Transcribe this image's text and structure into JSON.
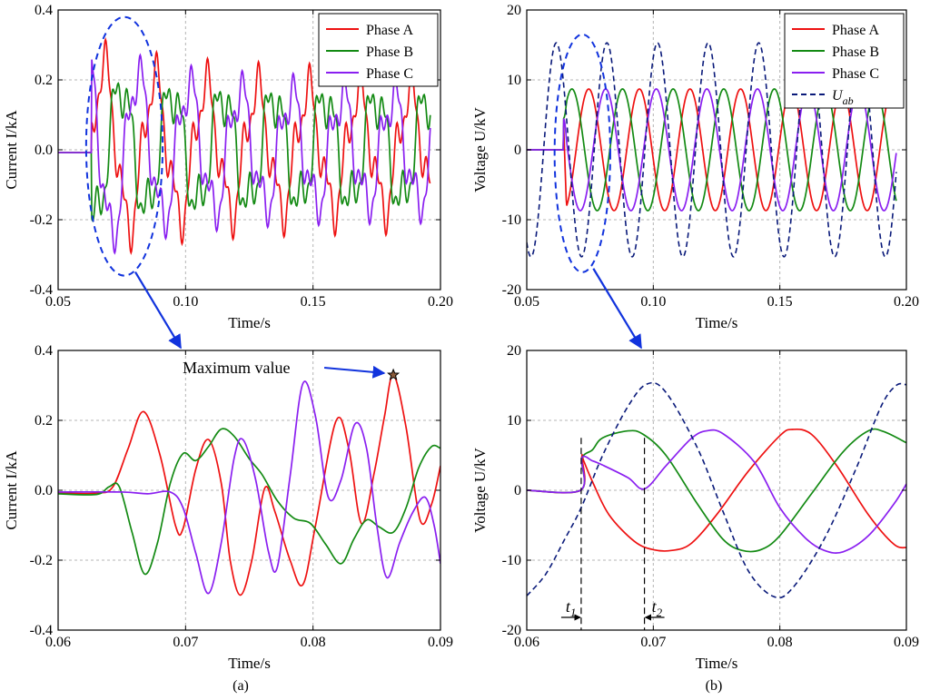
{
  "figure": {
    "sub_a": "(a)",
    "sub_b": "(b)"
  },
  "colors": {
    "A": "#ee1111",
    "B": "#138a13",
    "C": "#8a1ff0",
    "Uab": "#0a1a7a",
    "highlight": "#1133dd",
    "grid": "#b4b4b4"
  },
  "chart_data": [
    {
      "id": "current-overview",
      "type": "line",
      "xlabel": "Time/s",
      "ylabel": "Current I/kA",
      "xlim": [
        0.05,
        0.2
      ],
      "ylim": [
        -0.4,
        0.4
      ],
      "xticks": [
        0.05,
        0.1,
        0.15,
        0.2
      ],
      "xtick_labels": [
        "0.05",
        "0.10",
        "0.15",
        "0.20"
      ],
      "yticks": [
        -0.4,
        -0.2,
        0.0,
        0.2,
        0.4
      ],
      "ytick_labels": [
        "-0.4",
        "-0.2",
        "0.0",
        "0.2",
        "0.4"
      ],
      "grid": true,
      "legend_position": "top-right",
      "legend": [
        "Phase A",
        "Phase B",
        "Phase C"
      ],
      "annotation": {
        "type": "ellipse-highlight",
        "x_range": [
          0.061,
          0.091
        ],
        "y_range": [
          -0.36,
          0.38
        ]
      },
      "series": [
        {
          "name": "Phase A",
          "key": "A",
          "onset": 0.063,
          "amp": 0.16,
          "amp_early": 0.25,
          "period": 0.02,
          "phase_deg": 0,
          "ripple": 0.06
        },
        {
          "name": "Phase B",
          "key": "B",
          "onset": 0.063,
          "amp": 0.15,
          "amp_early": 0.2,
          "period": 0.02,
          "phase_deg": -120,
          "ripple": 0.06
        },
        {
          "name": "Phase C",
          "key": "C",
          "onset": 0.063,
          "amp": 0.15,
          "amp_early": 0.27,
          "period": 0.02,
          "phase_deg": 120,
          "ripple": 0.06
        }
      ]
    },
    {
      "id": "voltage-overview",
      "type": "line",
      "xlabel": "Time/s",
      "ylabel": "Voltage U/kV",
      "xlim": [
        0.05,
        0.2
      ],
      "ylim": [
        -20,
        20
      ],
      "xticks": [
        0.05,
        0.1,
        0.15,
        0.2
      ],
      "xtick_labels": [
        "0.05",
        "0.10",
        "0.15",
        "0.20"
      ],
      "yticks": [
        -20,
        -10,
        0,
        10,
        20
      ],
      "ytick_labels": [
        "-20",
        "-10",
        "0",
        "10",
        "20"
      ],
      "grid": true,
      "legend_position": "top-right",
      "legend": [
        "Phase A",
        "Phase B",
        "Phase C",
        "U"
      ],
      "legend_sub": "ab",
      "annotation": {
        "type": "ellipse-highlight",
        "x_range": [
          0.061,
          0.083
        ],
        "y_range": [
          -17.5,
          16.5
        ]
      },
      "series": [
        {
          "name": "Phase A",
          "key": "A",
          "onset": 0.0645,
          "amp": 8.7,
          "period": 0.02,
          "phase_deg": -90
        },
        {
          "name": "Phase B",
          "key": "B",
          "onset": 0.0645,
          "amp": 8.7,
          "period": 0.02,
          "phase_deg": 30
        },
        {
          "name": "Phase C",
          "key": "C",
          "onset": 0.0645,
          "amp": 8.7,
          "period": 0.02,
          "phase_deg": 150
        },
        {
          "name": "Uab",
          "key": "Uab",
          "onset": 0.05,
          "amp": 15.3,
          "period": 0.02,
          "phase_deg": -120,
          "dashed": true
        }
      ]
    },
    {
      "id": "current-zoom",
      "type": "line",
      "xlabel": "Time/s",
      "ylabel": "Current I/kA",
      "xlim": [
        0.06,
        0.09
      ],
      "ylim": [
        -0.4,
        0.4
      ],
      "xticks": [
        0.06,
        0.07,
        0.08,
        0.09
      ],
      "xtick_labels": [
        "0.06",
        "0.07",
        "0.08",
        "0.09"
      ],
      "yticks": [
        -0.4,
        -0.2,
        0.0,
        0.2,
        0.4
      ],
      "ytick_labels": [
        "-0.4",
        "-0.2",
        "0.0",
        "0.2",
        "0.4"
      ],
      "grid": true,
      "annotation": {
        "text": "Maximum value",
        "x": 0.0863,
        "y": 0.33,
        "marker": "star"
      },
      "series": [
        {
          "name": "Phase A",
          "key": "A",
          "points": [
            [
              0.06,
              -0.008
            ],
            [
              0.063,
              -0.008
            ],
            [
              0.0643,
              0.01
            ],
            [
              0.0655,
              0.12
            ],
            [
              0.0667,
              0.225
            ],
            [
              0.068,
              0.1
            ],
            [
              0.0692,
              -0.1
            ],
            [
              0.0698,
              -0.11
            ],
            [
              0.0708,
              0.06
            ],
            [
              0.0718,
              0.145
            ],
            [
              0.0728,
              0.02
            ],
            [
              0.0735,
              -0.2
            ],
            [
              0.0743,
              -0.3
            ],
            [
              0.0752,
              -0.2
            ],
            [
              0.0762,
              0.005
            ],
            [
              0.077,
              -0.06
            ],
            [
              0.0782,
              -0.2
            ],
            [
              0.0792,
              -0.27
            ],
            [
              0.0802,
              -0.1
            ],
            [
              0.0818,
              0.198
            ],
            [
              0.0828,
              0.12
            ],
            [
              0.0838,
              -0.095
            ],
            [
              0.0848,
              0.05
            ],
            [
              0.0856,
              0.21
            ],
            [
              0.0863,
              0.33
            ],
            [
              0.0873,
              0.18
            ],
            [
              0.0884,
              -0.085
            ],
            [
              0.0893,
              -0.04
            ],
            [
              0.09,
              0.07
            ]
          ]
        },
        {
          "name": "Phase B",
          "key": "B",
          "points": [
            [
              0.06,
              -0.01
            ],
            [
              0.063,
              -0.012
            ],
            [
              0.064,
              0.01
            ],
            [
              0.0648,
              0.01
            ],
            [
              0.0658,
              -0.12
            ],
            [
              0.0668,
              -0.24
            ],
            [
              0.0678,
              -0.15
            ],
            [
              0.0688,
              0.02
            ],
            [
              0.0698,
              0.105
            ],
            [
              0.0708,
              0.085
            ],
            [
              0.0718,
              0.125
            ],
            [
              0.0728,
              0.175
            ],
            [
              0.0738,
              0.155
            ],
            [
              0.075,
              0.09
            ],
            [
              0.076,
              0.045
            ],
            [
              0.0772,
              -0.03
            ],
            [
              0.0785,
              -0.08
            ],
            [
              0.0798,
              -0.095
            ],
            [
              0.081,
              -0.155
            ],
            [
              0.0822,
              -0.21
            ],
            [
              0.0832,
              -0.14
            ],
            [
              0.0842,
              -0.085
            ],
            [
              0.0852,
              -0.105
            ],
            [
              0.0863,
              -0.12
            ],
            [
              0.0873,
              -0.05
            ],
            [
              0.0883,
              0.065
            ],
            [
              0.0893,
              0.125
            ],
            [
              0.09,
              0.12
            ]
          ]
        },
        {
          "name": "Phase C",
          "key": "C",
          "points": [
            [
              0.06,
              -0.005
            ],
            [
              0.065,
              -0.005
            ],
            [
              0.067,
              -0.01
            ],
            [
              0.0688,
              -0.005
            ],
            [
              0.0698,
              -0.05
            ],
            [
              0.0708,
              -0.18
            ],
            [
              0.0718,
              -0.295
            ],
            [
              0.0728,
              -0.15
            ],
            [
              0.0738,
              0.09
            ],
            [
              0.0745,
              0.145
            ],
            [
              0.0755,
              0.03
            ],
            [
              0.0765,
              -0.175
            ],
            [
              0.0772,
              -0.22
            ],
            [
              0.0782,
              0.04
            ],
            [
              0.0792,
              0.305
            ],
            [
              0.0802,
              0.21
            ],
            [
              0.0812,
              -0.02
            ],
            [
              0.0822,
              0.03
            ],
            [
              0.0833,
              0.19
            ],
            [
              0.0842,
              0.12
            ],
            [
              0.085,
              -0.1
            ],
            [
              0.0858,
              -0.25
            ],
            [
              0.0868,
              -0.15
            ],
            [
              0.0878,
              -0.065
            ],
            [
              0.0888,
              -0.02
            ],
            [
              0.0895,
              -0.1
            ],
            [
              0.09,
              -0.21
            ]
          ]
        }
      ]
    },
    {
      "id": "voltage-zoom",
      "type": "line",
      "xlabel": "Time/s",
      "ylabel": "Voltage U/kV",
      "xlim": [
        0.06,
        0.09
      ],
      "ylim": [
        -20,
        20
      ],
      "xticks": [
        0.06,
        0.07,
        0.08,
        0.09
      ],
      "xtick_labels": [
        "0.06",
        "0.07",
        "0.08",
        "0.09"
      ],
      "yticks": [
        -20,
        -10,
        0,
        10,
        20
      ],
      "ytick_labels": [
        "-20",
        "-10",
        "0",
        "10",
        "20"
      ],
      "grid": true,
      "markers": [
        {
          "label": "t",
          "sub": "1",
          "x": 0.0643
        },
        {
          "label": "t",
          "sub": "2",
          "x": 0.0693
        }
      ],
      "series": [
        {
          "name": "Phase A",
          "key": "A",
          "points": [
            [
              0.06,
              0
            ],
            [
              0.06425,
              0
            ],
            [
              0.06435,
              4.8
            ],
            [
              0.0645,
              4.2
            ],
            [
              0.0652,
              1.2
            ],
            [
              0.0665,
              -3.5
            ],
            [
              0.0685,
              -7.3
            ],
            [
              0.07,
              -8.5
            ],
            [
              0.0715,
              -8.6
            ],
            [
              0.073,
              -7.6
            ],
            [
              0.075,
              -3.5
            ],
            [
              0.0775,
              2.7
            ],
            [
              0.08,
              7.8
            ],
            [
              0.081,
              8.7
            ],
            [
              0.0825,
              8
            ],
            [
              0.0845,
              3.5
            ],
            [
              0.087,
              -3.5
            ],
            [
              0.089,
              -7.7
            ],
            [
              0.09,
              -8.2
            ]
          ]
        },
        {
          "name": "Phase B",
          "key": "B",
          "points": [
            [
              0.06,
              0
            ],
            [
              0.06425,
              0
            ],
            [
              0.06435,
              4.5
            ],
            [
              0.0652,
              5.8
            ],
            [
              0.066,
              7.5
            ],
            [
              0.068,
              8.5
            ],
            [
              0.0692,
              8
            ],
            [
              0.071,
              5
            ],
            [
              0.0735,
              -2
            ],
            [
              0.0755,
              -7
            ],
            [
              0.077,
              -8.6
            ],
            [
              0.0785,
              -8.5
            ],
            [
              0.08,
              -6.5
            ],
            [
              0.0825,
              -0.5
            ],
            [
              0.085,
              5.5
            ],
            [
              0.087,
              8.5
            ],
            [
              0.0882,
              8.4
            ],
            [
              0.09,
              6.8
            ]
          ]
        },
        {
          "name": "Phase C",
          "key": "C",
          "points": [
            [
              0.06,
              0
            ],
            [
              0.06425,
              0
            ],
            [
              0.06435,
              4.6
            ],
            [
              0.0652,
              4.2
            ],
            [
              0.066,
              3.6
            ],
            [
              0.068,
              1.8
            ],
            [
              0.0693,
              0.2
            ],
            [
              0.071,
              3.5
            ],
            [
              0.073,
              7.4
            ],
            [
              0.0742,
              8.5
            ],
            [
              0.0755,
              8.1
            ],
            [
              0.078,
              4
            ],
            [
              0.08,
              -2.5
            ],
            [
              0.082,
              -6.8
            ],
            [
              0.0835,
              -8.6
            ],
            [
              0.085,
              -8.8
            ],
            [
              0.087,
              -6.5
            ],
            [
              0.089,
              -2
            ],
            [
              0.09,
              0.9
            ]
          ]
        },
        {
          "name": "Uab",
          "key": "Uab",
          "dashed": true,
          "points": [
            [
              0.06,
              -15.1
            ],
            [
              0.0615,
              -12
            ],
            [
              0.063,
              -7
            ],
            [
              0.0643,
              -2.5
            ],
            [
              0.066,
              5
            ],
            [
              0.068,
              12
            ],
            [
              0.0695,
              15.2
            ],
            [
              0.071,
              14
            ],
            [
              0.0735,
              6
            ],
            [
              0.0755,
              -3
            ],
            [
              0.0775,
              -11.5
            ],
            [
              0.0795,
              -15.2
            ],
            [
              0.081,
              -14
            ],
            [
              0.0835,
              -7
            ],
            [
              0.086,
              3
            ],
            [
              0.088,
              12
            ],
            [
              0.0892,
              15
            ],
            [
              0.09,
              15.1
            ]
          ]
        }
      ]
    }
  ]
}
